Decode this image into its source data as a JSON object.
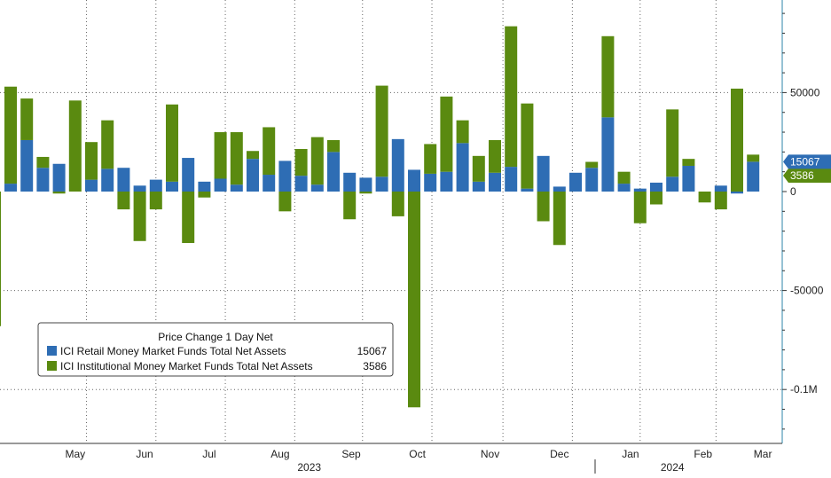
{
  "chart_data": {
    "type": "bar",
    "stacked": true,
    "legend": {
      "title": "Price Change 1 Day Net",
      "placement": "bottom-left",
      "entries": [
        {
          "series": 0,
          "label": "ICI Retail Money Market Funds Total Net Assets",
          "value": "15067"
        },
        {
          "series": 1,
          "label": "ICI Institutional Money Market Funds Total Net Assets",
          "value": "3586"
        }
      ]
    },
    "y_axis": {
      "position": "right",
      "ylim": [
        -125000,
        95000
      ],
      "ticks": [
        {
          "value": 50000,
          "label": "50000"
        },
        {
          "value": 0,
          "label": "0"
        },
        {
          "value": -50000,
          "label": "-50000"
        },
        {
          "value": -100000,
          "label": "-0.1M"
        }
      ]
    },
    "x_axis": {
      "month_labels": [
        "May",
        "Jun",
        "Jul",
        "Aug",
        "Sep",
        "Oct",
        "Nov",
        "Dec",
        "Jan",
        "Feb",
        "Mar"
      ],
      "month_positions": [
        4.3,
        8.6,
        12.6,
        17.0,
        21.4,
        25.5,
        30.0,
        34.3,
        38.7,
        43.2,
        46.9
      ],
      "year_labels": [
        "2023",
        "2024"
      ],
      "year_positions": [
        18.5,
        41.0
      ]
    },
    "last_value_tags": [
      {
        "series": 1,
        "label": "3586",
        "value": 3586
      },
      {
        "series": 0,
        "label": "15067",
        "value": 15067
      }
    ],
    "grid": true,
    "series": [
      {
        "name": "ICI Retail Money Market Funds Total Net Assets",
        "color": "#2e6db4",
        "values": [
          4000,
          26000,
          12000,
          14000,
          0,
          6000,
          11500,
          12000,
          3000,
          6000,
          5000,
          17000,
          5000,
          6500,
          3500,
          16500,
          8500,
          15500,
          8000,
          3500,
          20000,
          9500,
          7000,
          7500,
          26500,
          11000,
          9000,
          10000,
          24500,
          5000,
          9500,
          12500,
          1500,
          18000,
          2500,
          9500,
          12000,
          37500,
          4000,
          1500,
          4500,
          7500,
          13000,
          0,
          3000,
          -1000,
          15067
        ]
      },
      {
        "name": "ICI Institutional Money Market Funds Total Net Assets",
        "color": "#5a8a10",
        "values": [
          49000,
          21000,
          5500,
          -1000,
          46000,
          19000,
          24500,
          -9000,
          -25000,
          -9000,
          39000,
          -26000,
          -3000,
          23500,
          26500,
          4000,
          24000,
          -10000,
          13500,
          24000,
          6000,
          -14000,
          -1000,
          46000,
          -12500,
          -109000,
          15000,
          38000,
          11500,
          13000,
          16500,
          71000,
          43000,
          -15000,
          -27000,
          0,
          3000,
          41000,
          6000,
          -16000,
          -6500,
          34000,
          3500,
          -5500,
          -9000,
          52000,
          3586
        ]
      }
    ]
  }
}
